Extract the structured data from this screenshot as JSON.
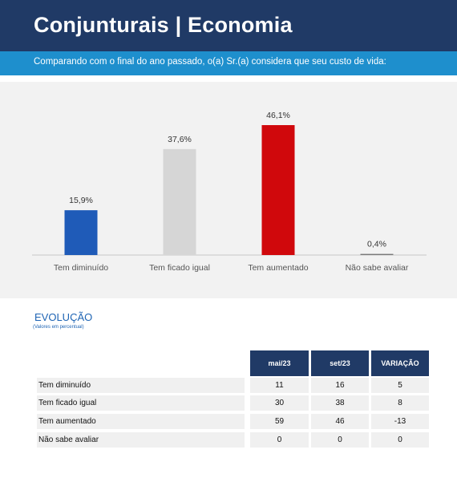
{
  "header": {
    "title": "Conjunturais | Economia"
  },
  "subheader": {
    "text": "Comparando com o final do ano passado, o(a) Sr.(a) considera que seu custo de vida:"
  },
  "chart_data": {
    "type": "bar",
    "categories": [
      "Tem diminuído",
      "Tem ficado igual",
      "Tem aumentado",
      "Não sabe avaliar"
    ],
    "values": [
      15.9,
      37.6,
      46.1,
      0.4
    ],
    "value_labels": [
      "15,9%",
      "37,6%",
      "46,1%",
      "0,4%"
    ],
    "colors": [
      "#1f5bb8",
      "#d6d6d6",
      "#d0080c",
      "#7a7a7a"
    ],
    "ylim": [
      0,
      46.1
    ],
    "grid": false
  },
  "evolution": {
    "title": "EVOLUÇÃO",
    "subtitle": "(Valores em percentual)",
    "columns": [
      "mai/23",
      "set/23",
      "VARIAÇÃO"
    ],
    "rows": [
      {
        "label": "Tem diminuído",
        "values": [
          "11",
          "16",
          "5"
        ]
      },
      {
        "label": "Tem ficado igual",
        "values": [
          "30",
          "38",
          "8"
        ]
      },
      {
        "label": "Tem aumentado",
        "values": [
          "59",
          "46",
          "-13"
        ]
      },
      {
        "label": "Não sabe avaliar",
        "values": [
          "0",
          "0",
          "0"
        ]
      }
    ]
  }
}
